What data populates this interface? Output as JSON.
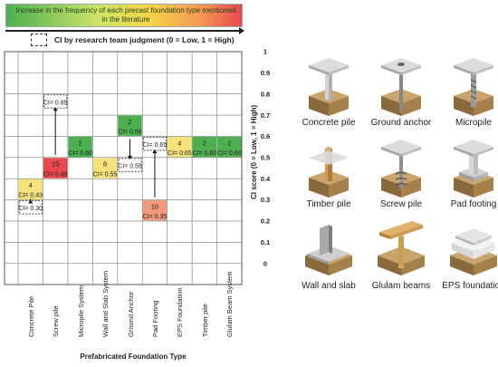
{
  "legend": {
    "gradient_text": "Increase in the frequency of each precast foundation type mentioned in the literature",
    "ci_text": "CI by research team judgment (0 = Low, 1 = High)",
    "gradient_colors": [
      "#4caf50",
      "#c9e36a",
      "#f7d548",
      "#f39a52",
      "#e8484d"
    ]
  },
  "chart_data": {
    "type": "heatmap",
    "xlabel": "Prefabricated Foundation Type",
    "ylabel": "CI score (0 = Low, 1 = High)",
    "categories": [
      "Concrete Pile",
      "Screw pile",
      "Micropile System",
      "Wall and Slab System",
      "Ground Anchor",
      "Pad Footing",
      "EPS Foundation",
      "Timber pile",
      "Glulam Beam System"
    ],
    "y_ticks": [
      "1",
      "0.9",
      "0.8",
      "0.7",
      "0.6",
      "0.5",
      "0.4",
      "0.3",
      "0.2",
      "0.1",
      "0"
    ],
    "ylim": [
      0,
      1
    ],
    "cells": [
      {
        "category": "Concrete Pile",
        "count": "4",
        "ci": "CI= 0.43",
        "value": 0.43,
        "color": "#f5e27a"
      },
      {
        "category": "Screw pile",
        "count": "15",
        "ci": "CI= 0.49",
        "value": 0.49,
        "color": "#e8484d"
      },
      {
        "category": "Micropile System",
        "count": "2",
        "ci": "CI= 0.60",
        "value": 0.6,
        "color": "#4caf50"
      },
      {
        "category": "Wall and Slab System",
        "count": "6",
        "ci": "CI= 0.55",
        "value": 0.55,
        "color": "#f5e27a"
      },
      {
        "category": "Ground Anchor",
        "count": "2",
        "ci": "CI= 0.66",
        "value": 0.66,
        "color": "#4caf50"
      },
      {
        "category": "Pad Footing",
        "count": "10",
        "ci": "CI= 0.35",
        "value": 0.35,
        "color": "#f39a7a"
      },
      {
        "category": "EPS Foundation",
        "count": "4",
        "ci": "CI= 0.65",
        "value": 0.65,
        "color": "#f5e27a"
      },
      {
        "category": "Timber pile",
        "count": "2",
        "ci": "CI= 0.60",
        "value": 0.6,
        "color": "#4caf50"
      },
      {
        "category": "Glulam Beam System",
        "count": "2",
        "ci": "CI= 0.60",
        "value": 0.6,
        "color": "#4caf50"
      }
    ],
    "judgments": [
      {
        "category": "Concrete Pile",
        "ci": "CI= 0.30",
        "value": 0.3,
        "from": 0.43
      },
      {
        "category": "Screw pile",
        "ci": "CI= 0.85",
        "value": 0.85,
        "from": 0.49
      },
      {
        "category": "Ground Anchor",
        "ci": "CI= 0.55",
        "value": 0.55,
        "from": 0.66
      },
      {
        "category": "Pad Footing",
        "ci": "CI= 0.65",
        "value": 0.65,
        "from": 0.35
      }
    ]
  },
  "foundations": [
    {
      "label": "Concrete pile",
      "icon": "concrete-pile"
    },
    {
      "label": "Ground anchor",
      "icon": "ground-anchor"
    },
    {
      "label": "Micropile",
      "icon": "micropile"
    },
    {
      "label": "Timber pile",
      "icon": "timber-pile"
    },
    {
      "label": "Screw pile",
      "icon": "screw-pile"
    },
    {
      "label": "Pad footing",
      "icon": "pad-footing"
    },
    {
      "label": "Wall and slab",
      "icon": "wall-and-slab"
    },
    {
      "label": "Glulam beams",
      "icon": "glulam-beams"
    },
    {
      "label": "EPS foundation",
      "icon": "eps-foundation"
    }
  ]
}
